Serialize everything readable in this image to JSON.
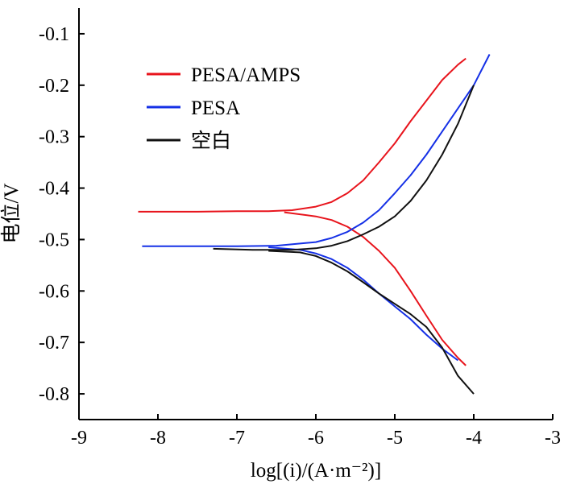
{
  "chart_data": {
    "type": "line",
    "title": "",
    "xlabel": "log[(i)/(A·m⁻²)]",
    "ylabel": "电位/V",
    "xlim": [
      -9,
      -3
    ],
    "ylim": [
      -0.85,
      -0.05
    ],
    "xticks": [
      -9,
      -8,
      -7,
      -6,
      -5,
      -4,
      -3
    ],
    "yticks": [
      -0.1,
      -0.2,
      -0.3,
      -0.4,
      -0.5,
      -0.6,
      -0.7,
      -0.8
    ],
    "xtick_labels": [
      "-9",
      "-8",
      "-7",
      "-6",
      "-5",
      "-4",
      "-3"
    ],
    "ytick_labels": [
      "-0.1",
      "-0.2",
      "-0.3",
      "-0.4",
      "-0.5",
      "-0.6",
      "-0.7",
      "-0.8"
    ],
    "grid": false,
    "legend_position": "top-left",
    "series": [
      {
        "name": "PESA/AMPS",
        "color": "#e8141c",
        "anodic": [
          [
            -8.25,
            -0.446
          ],
          [
            -7.5,
            -0.446
          ],
          [
            -7.0,
            -0.445
          ],
          [
            -6.6,
            -0.445
          ],
          [
            -6.3,
            -0.443
          ],
          [
            -6.0,
            -0.436
          ],
          [
            -5.8,
            -0.427
          ],
          [
            -5.6,
            -0.41
          ],
          [
            -5.4,
            -0.385
          ],
          [
            -5.2,
            -0.35
          ],
          [
            -5.0,
            -0.313
          ],
          [
            -4.8,
            -0.27
          ],
          [
            -4.6,
            -0.23
          ],
          [
            -4.4,
            -0.19
          ],
          [
            -4.2,
            -0.16
          ],
          [
            -4.1,
            -0.148
          ]
        ],
        "cathodic": [
          [
            -6.4,
            -0.447
          ],
          [
            -6.0,
            -0.455
          ],
          [
            -5.8,
            -0.462
          ],
          [
            -5.6,
            -0.475
          ],
          [
            -5.4,
            -0.495
          ],
          [
            -5.2,
            -0.522
          ],
          [
            -5.0,
            -0.555
          ],
          [
            -4.8,
            -0.6
          ],
          [
            -4.6,
            -0.648
          ],
          [
            -4.4,
            -0.695
          ],
          [
            -4.2,
            -0.73
          ],
          [
            -4.1,
            -0.745
          ]
        ]
      },
      {
        "name": "PESA",
        "color": "#1530e6",
        "anodic": [
          [
            -8.2,
            -0.513
          ],
          [
            -7.5,
            -0.513
          ],
          [
            -7.0,
            -0.513
          ],
          [
            -6.5,
            -0.512
          ],
          [
            -6.0,
            -0.505
          ],
          [
            -5.8,
            -0.497
          ],
          [
            -5.6,
            -0.485
          ],
          [
            -5.4,
            -0.467
          ],
          [
            -5.2,
            -0.443
          ],
          [
            -5.0,
            -0.41
          ],
          [
            -4.8,
            -0.375
          ],
          [
            -4.6,
            -0.335
          ],
          [
            -4.4,
            -0.29
          ],
          [
            -4.2,
            -0.245
          ],
          [
            -4.0,
            -0.2
          ],
          [
            -3.8,
            -0.14
          ]
        ],
        "cathodic": [
          [
            -6.6,
            -0.515
          ],
          [
            -6.2,
            -0.52
          ],
          [
            -6.0,
            -0.527
          ],
          [
            -5.8,
            -0.538
          ],
          [
            -5.6,
            -0.555
          ],
          [
            -5.4,
            -0.578
          ],
          [
            -5.2,
            -0.605
          ],
          [
            -5.0,
            -0.63
          ],
          [
            -4.8,
            -0.655
          ],
          [
            -4.6,
            -0.685
          ],
          [
            -4.4,
            -0.712
          ],
          [
            -4.2,
            -0.735
          ]
        ]
      },
      {
        "name": "空白",
        "color": "#111111",
        "anodic": [
          [
            -7.3,
            -0.518
          ],
          [
            -6.8,
            -0.52
          ],
          [
            -6.3,
            -0.52
          ],
          [
            -6.0,
            -0.517
          ],
          [
            -5.8,
            -0.512
          ],
          [
            -5.6,
            -0.503
          ],
          [
            -5.4,
            -0.49
          ],
          [
            -5.2,
            -0.475
          ],
          [
            -5.0,
            -0.455
          ],
          [
            -4.8,
            -0.425
          ],
          [
            -4.6,
            -0.385
          ],
          [
            -4.4,
            -0.335
          ],
          [
            -4.2,
            -0.275
          ],
          [
            -4.0,
            -0.2
          ]
        ],
        "cathodic": [
          [
            -6.6,
            -0.522
          ],
          [
            -6.2,
            -0.525
          ],
          [
            -6.0,
            -0.532
          ],
          [
            -5.8,
            -0.545
          ],
          [
            -5.6,
            -0.562
          ],
          [
            -5.4,
            -0.583
          ],
          [
            -5.2,
            -0.605
          ],
          [
            -5.0,
            -0.625
          ],
          [
            -4.8,
            -0.645
          ],
          [
            -4.6,
            -0.67
          ],
          [
            -4.4,
            -0.71
          ],
          [
            -4.2,
            -0.765
          ],
          [
            -4.0,
            -0.8
          ]
        ]
      }
    ]
  }
}
